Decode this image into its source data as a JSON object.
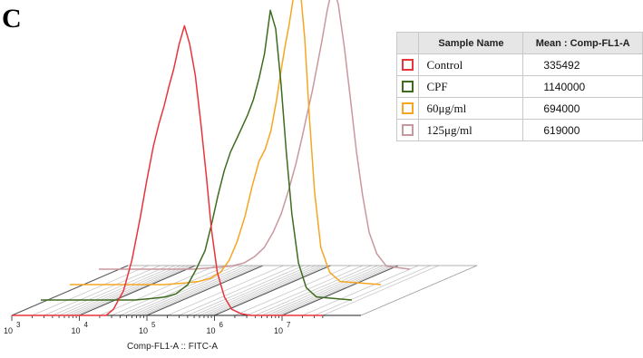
{
  "panel_label": "C",
  "chart_data": {
    "type": "line",
    "xlabel": "Comp-FL1-A :: FITC-A",
    "x_scale": "log",
    "x_ticks": [
      {
        "base": "10",
        "exp": "3",
        "value": 1000
      },
      {
        "base": "10",
        "exp": "4",
        "value": 10000
      },
      {
        "base": "10",
        "exp": "5",
        "value": 100000
      },
      {
        "base": "10",
        "exp": "6",
        "value": 1000000
      },
      {
        "base": "10",
        "exp": "7",
        "value": 10000000
      }
    ],
    "xlim": [
      1000,
      40000000
    ],
    "ylabel": "",
    "ylim": [
      0,
      1
    ],
    "layout": "offset-3d-overlay",
    "legend": {
      "headers": [
        "",
        "Sample Name",
        "Mean : Comp-FL1-A"
      ],
      "position": "top-right"
    },
    "series": [
      {
        "name": "Control",
        "mean": "335492",
        "color": "#e8353b",
        "x": [
          1000,
          25000,
          32000,
          45000,
          60000,
          80000,
          100000,
          125000,
          150000,
          180000,
          210000,
          250000,
          300000,
          360000,
          430000,
          520000,
          630000,
          760000,
          900000,
          1100000,
          1400000,
          1800000,
          2500000,
          3500000,
          40000000
        ],
        "y": [
          0,
          0,
          0.02,
          0.08,
          0.18,
          0.32,
          0.44,
          0.55,
          0.62,
          0.68,
          0.74,
          0.8,
          0.88,
          0.94,
          0.88,
          0.78,
          0.62,
          0.45,
          0.28,
          0.14,
          0.06,
          0.02,
          0.005,
          0,
          0
        ]
      },
      {
        "name": "CPF",
        "mean": "1140000",
        "color": "#3e6b1e",
        "x": [
          1000,
          25000,
          45000,
          70000,
          100000,
          150000,
          200000,
          270000,
          340000,
          420000,
          520000,
          640000,
          780000,
          950000,
          1150000,
          1400000,
          1700000,
          2050000,
          2500000,
          3000000,
          3600000,
          4300000,
          5200000,
          6500000,
          8500000,
          12000000,
          40000000
        ],
        "y": [
          0,
          0,
          0.005,
          0.01,
          0.02,
          0.05,
          0.1,
          0.16,
          0.25,
          0.34,
          0.42,
          0.48,
          0.52,
          0.56,
          0.6,
          0.65,
          0.72,
          0.8,
          0.94,
          0.88,
          0.7,
          0.48,
          0.28,
          0.12,
          0.04,
          0.01,
          0
        ]
      },
      {
        "name": "60μg/ml",
        "mean": "694000",
        "color": "#f5a623",
        "x": [
          1000,
          25000,
          50000,
          80000,
          120000,
          170000,
          230000,
          300000,
          390000,
          500000,
          630000,
          780000,
          950000,
          1150000,
          1350000,
          1550000,
          1750000,
          2000000,
          2300000,
          2600000,
          3000000,
          3500000,
          4200000,
          5200000,
          7000000,
          10000000,
          40000000
        ],
        "y": [
          0,
          0,
          0.005,
          0.01,
          0.02,
          0.04,
          0.08,
          0.14,
          0.22,
          0.32,
          0.4,
          0.44,
          0.5,
          0.6,
          0.7,
          0.78,
          0.84,
          0.92,
          1.0,
          0.95,
          0.8,
          0.55,
          0.3,
          0.12,
          0.04,
          0.01,
          0
        ]
      },
      {
        "name": "125μg/ml",
        "mean": "619000",
        "color": "#c9989f",
        "x": [
          1000,
          25000,
          50000,
          90000,
          140000,
          200000,
          280000,
          380000,
          500000,
          650000,
          820000,
          1000000,
          1200000,
          1450000,
          1700000,
          2000000,
          2400000,
          2900000,
          3500000,
          4300000,
          5300000,
          6500000,
          8000000,
          10000000,
          13000000,
          18000000,
          40000000
        ],
        "y": [
          0,
          0,
          0.005,
          0.01,
          0.02,
          0.04,
          0.07,
          0.12,
          0.18,
          0.26,
          0.34,
          0.42,
          0.5,
          0.58,
          0.66,
          0.74,
          0.84,
          0.92,
          0.86,
          0.72,
          0.55,
          0.38,
          0.24,
          0.12,
          0.05,
          0.01,
          0
        ]
      }
    ]
  }
}
